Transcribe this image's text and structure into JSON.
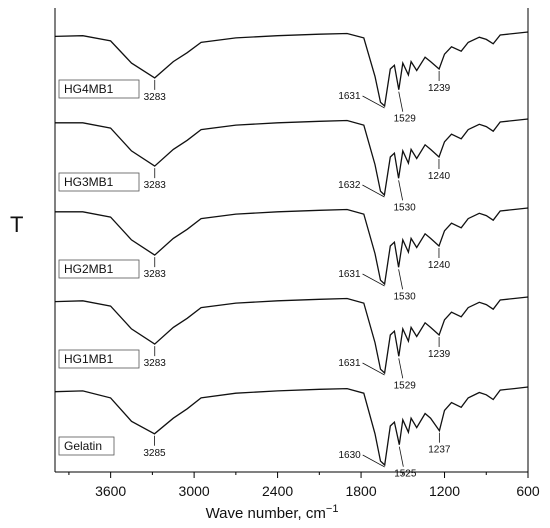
{
  "chart_data": {
    "type": "line",
    "title": "",
    "xlabel": "Wave number, cm",
    "xlabel_superscript": "−1",
    "ylabel": "T",
    "xlim": [
      4000,
      600
    ],
    "x_reversed": true,
    "x_ticks": [
      3600,
      3000,
      2400,
      1800,
      1200,
      600
    ],
    "x_tick_labels": [
      "3600",
      "3000",
      "2400",
      "1800",
      "1200",
      "600"
    ],
    "y_ticks_shown": false,
    "grid": false,
    "series": [
      {
        "name": "HG4MB1",
        "points": [
          [
            4000,
            0.06
          ],
          [
            3800,
            0.05
          ],
          [
            3600,
            0.12
          ],
          [
            3450,
            0.42
          ],
          [
            3283,
            0.62
          ],
          [
            3150,
            0.4
          ],
          [
            3050,
            0.28
          ],
          [
            2950,
            0.14
          ],
          [
            2700,
            0.08
          ],
          [
            2400,
            0.05
          ],
          [
            2100,
            0.03
          ],
          [
            1900,
            0.02
          ],
          [
            1780,
            0.08
          ],
          [
            1700,
            0.6
          ],
          [
            1660,
            0.95
          ],
          [
            1631,
            1.0
          ],
          [
            1590,
            0.5
          ],
          [
            1560,
            0.45
          ],
          [
            1529,
            0.78
          ],
          [
            1500,
            0.42
          ],
          [
            1460,
            0.58
          ],
          [
            1440,
            0.4
          ],
          [
            1400,
            0.52
          ],
          [
            1340,
            0.34
          ],
          [
            1300,
            0.4
          ],
          [
            1239,
            0.5
          ],
          [
            1200,
            0.3
          ],
          [
            1150,
            0.2
          ],
          [
            1080,
            0.26
          ],
          [
            1030,
            0.14
          ],
          [
            950,
            0.07
          ],
          [
            900,
            0.1
          ],
          [
            850,
            0.16
          ],
          [
            800,
            0.04
          ],
          [
            700,
            0.02
          ],
          [
            600,
            0.0
          ]
        ],
        "annotations": [
          {
            "x": 3283,
            "label": "3283"
          },
          {
            "x": 1631,
            "label": "1631"
          },
          {
            "x": 1529,
            "label": "1529"
          },
          {
            "x": 1239,
            "label": "1239"
          }
        ]
      },
      {
        "name": "HG3MB1",
        "points": [
          [
            4000,
            0.05
          ],
          [
            3800,
            0.05
          ],
          [
            3600,
            0.12
          ],
          [
            3450,
            0.42
          ],
          [
            3283,
            0.62
          ],
          [
            3150,
            0.4
          ],
          [
            3050,
            0.28
          ],
          [
            2950,
            0.14
          ],
          [
            2700,
            0.08
          ],
          [
            2400,
            0.05
          ],
          [
            2100,
            0.03
          ],
          [
            1900,
            0.02
          ],
          [
            1780,
            0.08
          ],
          [
            1700,
            0.6
          ],
          [
            1660,
            0.95
          ],
          [
            1632,
            1.0
          ],
          [
            1590,
            0.5
          ],
          [
            1560,
            0.45
          ],
          [
            1530,
            0.78
          ],
          [
            1500,
            0.42
          ],
          [
            1460,
            0.58
          ],
          [
            1440,
            0.4
          ],
          [
            1400,
            0.52
          ],
          [
            1340,
            0.34
          ],
          [
            1300,
            0.4
          ],
          [
            1240,
            0.5
          ],
          [
            1200,
            0.3
          ],
          [
            1150,
            0.2
          ],
          [
            1080,
            0.26
          ],
          [
            1030,
            0.14
          ],
          [
            950,
            0.07
          ],
          [
            900,
            0.1
          ],
          [
            850,
            0.16
          ],
          [
            800,
            0.04
          ],
          [
            700,
            0.02
          ],
          [
            600,
            0.0
          ]
        ],
        "annotations": [
          {
            "x": 3283,
            "label": "3283"
          },
          {
            "x": 1632,
            "label": "1632"
          },
          {
            "x": 1530,
            "label": "1530"
          },
          {
            "x": 1240,
            "label": "1240"
          }
        ]
      },
      {
        "name": "HG2MB1",
        "points": [
          [
            4000,
            0.05
          ],
          [
            3800,
            0.05
          ],
          [
            3600,
            0.12
          ],
          [
            3450,
            0.42
          ],
          [
            3283,
            0.62
          ],
          [
            3150,
            0.4
          ],
          [
            3050,
            0.28
          ],
          [
            2950,
            0.14
          ],
          [
            2700,
            0.08
          ],
          [
            2400,
            0.05
          ],
          [
            2100,
            0.03
          ],
          [
            1900,
            0.02
          ],
          [
            1780,
            0.08
          ],
          [
            1700,
            0.6
          ],
          [
            1660,
            0.95
          ],
          [
            1631,
            1.0
          ],
          [
            1590,
            0.5
          ],
          [
            1560,
            0.45
          ],
          [
            1530,
            0.78
          ],
          [
            1500,
            0.42
          ],
          [
            1460,
            0.58
          ],
          [
            1440,
            0.4
          ],
          [
            1400,
            0.52
          ],
          [
            1340,
            0.34
          ],
          [
            1300,
            0.4
          ],
          [
            1240,
            0.5
          ],
          [
            1200,
            0.3
          ],
          [
            1150,
            0.2
          ],
          [
            1080,
            0.26
          ],
          [
            1030,
            0.14
          ],
          [
            950,
            0.07
          ],
          [
            900,
            0.1
          ],
          [
            850,
            0.16
          ],
          [
            800,
            0.04
          ],
          [
            700,
            0.02
          ],
          [
            600,
            0.0
          ]
        ],
        "annotations": [
          {
            "x": 3283,
            "label": "3283"
          },
          {
            "x": 1631,
            "label": "1631"
          },
          {
            "x": 1530,
            "label": "1530"
          },
          {
            "x": 1240,
            "label": "1240"
          }
        ]
      },
      {
        "name": "HG1MB1",
        "points": [
          [
            4000,
            0.06
          ],
          [
            3800,
            0.05
          ],
          [
            3600,
            0.12
          ],
          [
            3450,
            0.42
          ],
          [
            3283,
            0.62
          ],
          [
            3150,
            0.4
          ],
          [
            3050,
            0.28
          ],
          [
            2950,
            0.14
          ],
          [
            2700,
            0.08
          ],
          [
            2400,
            0.05
          ],
          [
            2100,
            0.03
          ],
          [
            1900,
            0.02
          ],
          [
            1780,
            0.08
          ],
          [
            1700,
            0.6
          ],
          [
            1660,
            0.95
          ],
          [
            1631,
            1.0
          ],
          [
            1590,
            0.5
          ],
          [
            1560,
            0.45
          ],
          [
            1529,
            0.78
          ],
          [
            1500,
            0.42
          ],
          [
            1460,
            0.58
          ],
          [
            1440,
            0.4
          ],
          [
            1400,
            0.52
          ],
          [
            1340,
            0.34
          ],
          [
            1300,
            0.4
          ],
          [
            1239,
            0.5
          ],
          [
            1200,
            0.3
          ],
          [
            1150,
            0.2
          ],
          [
            1080,
            0.26
          ],
          [
            1030,
            0.14
          ],
          [
            950,
            0.07
          ],
          [
            900,
            0.1
          ],
          [
            850,
            0.16
          ],
          [
            800,
            0.04
          ],
          [
            700,
            0.02
          ],
          [
            600,
            0.0
          ]
        ],
        "annotations": [
          {
            "x": 3283,
            "label": "3283"
          },
          {
            "x": 1631,
            "label": "1631"
          },
          {
            "x": 1529,
            "label": "1529"
          },
          {
            "x": 1239,
            "label": "1239"
          }
        ]
      },
      {
        "name": "Gelatin",
        "points": [
          [
            4000,
            0.06
          ],
          [
            3800,
            0.05
          ],
          [
            3600,
            0.14
          ],
          [
            3450,
            0.44
          ],
          [
            3285,
            0.6
          ],
          [
            3150,
            0.4
          ],
          [
            3050,
            0.28
          ],
          [
            2950,
            0.14
          ],
          [
            2700,
            0.08
          ],
          [
            2400,
            0.05
          ],
          [
            2100,
            0.03
          ],
          [
            1900,
            0.02
          ],
          [
            1780,
            0.08
          ],
          [
            1700,
            0.6
          ],
          [
            1660,
            0.95
          ],
          [
            1630,
            1.0
          ],
          [
            1590,
            0.5
          ],
          [
            1560,
            0.45
          ],
          [
            1525,
            0.74
          ],
          [
            1500,
            0.42
          ],
          [
            1460,
            0.58
          ],
          [
            1440,
            0.4
          ],
          [
            1400,
            0.52
          ],
          [
            1340,
            0.34
          ],
          [
            1300,
            0.4
          ],
          [
            1237,
            0.56
          ],
          [
            1200,
            0.3
          ],
          [
            1150,
            0.2
          ],
          [
            1080,
            0.26
          ],
          [
            1030,
            0.14
          ],
          [
            950,
            0.07
          ],
          [
            900,
            0.1
          ],
          [
            850,
            0.16
          ],
          [
            800,
            0.04
          ],
          [
            700,
            0.02
          ],
          [
            600,
            0.0
          ]
        ],
        "annotations": [
          {
            "x": 3285,
            "label": "3285"
          },
          {
            "x": 1630,
            "label": "1630"
          },
          {
            "x": 1525,
            "label": "1525"
          },
          {
            "x": 1237,
            "label": "1237"
          }
        ]
      }
    ]
  }
}
